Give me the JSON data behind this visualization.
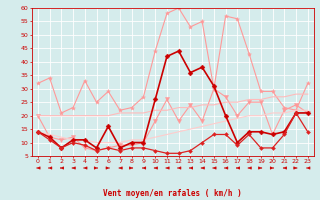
{
  "x": [
    0,
    1,
    2,
    3,
    4,
    5,
    6,
    7,
    8,
    9,
    10,
    11,
    12,
    13,
    14,
    15,
    16,
    17,
    18,
    19,
    20,
    21,
    22,
    23
  ],
  "series": [
    {
      "name": "rafales_light1",
      "color": "#ff9999",
      "linewidth": 0.8,
      "marker": "*",
      "markersize": 3,
      "y": [
        32,
        34,
        21,
        23,
        33,
        25,
        29,
        22,
        23,
        27,
        44,
        58,
        60,
        53,
        55,
        30,
        57,
        56,
        43,
        29,
        29,
        23,
        22,
        32
      ]
    },
    {
      "name": "rafales_light2",
      "color": "#ff9999",
      "linewidth": 0.8,
      "marker": "v",
      "markersize": 3,
      "y": [
        20,
        12,
        11,
        12,
        8,
        7,
        8,
        9,
        9,
        10,
        18,
        26,
        18,
        24,
        18,
        30,
        27,
        20,
        25,
        25,
        13,
        22,
        24,
        21
      ]
    },
    {
      "name": "moy_light1",
      "color": "#ffbbbb",
      "linewidth": 0.8,
      "marker": null,
      "markersize": 0,
      "y": [
        20,
        20,
        20,
        20,
        20,
        20,
        20,
        21,
        21,
        21,
        22,
        22,
        23,
        23,
        24,
        24,
        25,
        25,
        26,
        26,
        27,
        27,
        28,
        28
      ]
    },
    {
      "name": "moy_light2",
      "color": "#ffcccc",
      "linewidth": 0.8,
      "marker": null,
      "markersize": 0,
      "y": [
        14,
        13,
        12,
        11,
        11,
        10,
        10,
        10,
        11,
        11,
        12,
        13,
        14,
        15,
        16,
        17,
        18,
        19,
        20,
        20,
        21,
        21,
        22,
        22
      ]
    },
    {
      "name": "vent_moyen_dark",
      "color": "#cc0000",
      "linewidth": 1.2,
      "marker": "D",
      "markersize": 2.5,
      "y": [
        14,
        12,
        8,
        11,
        11,
        8,
        16,
        8,
        10,
        10,
        26,
        42,
        44,
        36,
        38,
        31,
        20,
        10,
        14,
        14,
        13,
        14,
        21,
        21
      ]
    },
    {
      "name": "vent_line2",
      "color": "#dd2222",
      "linewidth": 0.9,
      "marker": "D",
      "markersize": 2,
      "y": [
        14,
        11,
        8,
        10,
        9,
        7,
        8,
        7,
        8,
        8,
        7,
        6,
        6,
        7,
        10,
        13,
        13,
        9,
        13,
        8,
        8,
        13,
        21,
        14
      ]
    }
  ],
  "xlabel": "Vent moyen/en rafales ( km/h )",
  "xlim_min": -0.5,
  "xlim_max": 23.5,
  "ylim_min": 5,
  "ylim_max": 60,
  "yticks": [
    5,
    10,
    15,
    20,
    25,
    30,
    35,
    40,
    45,
    50,
    55,
    60
  ],
  "xticks": [
    0,
    1,
    2,
    3,
    4,
    5,
    6,
    7,
    8,
    9,
    10,
    11,
    12,
    13,
    14,
    15,
    16,
    17,
    18,
    19,
    20,
    21,
    22,
    23
  ],
  "bg_color": "#d5ecec",
  "grid_color": "#ffffff",
  "line_color": "#cc0000",
  "tick_color": "#cc0000",
  "arrow_directions": [
    -1,
    -1,
    -1,
    -1,
    -1,
    1,
    1,
    -1,
    1,
    -1,
    -1,
    -1,
    -1,
    -1,
    -1,
    -1,
    -1,
    -1,
    -1,
    1,
    1,
    -1,
    1,
    -1
  ]
}
